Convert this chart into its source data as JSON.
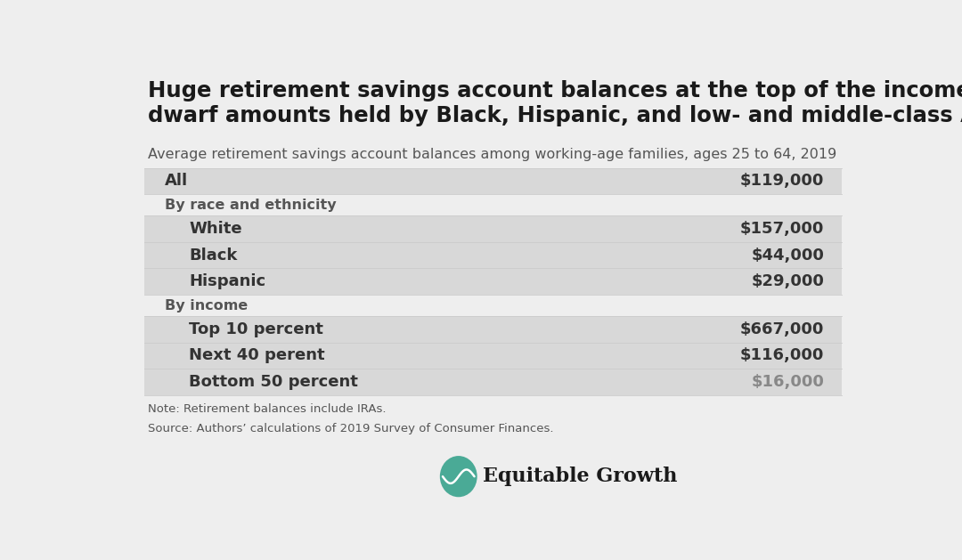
{
  "title_line1": "Huge retirement savings account balances at the top of the income spectrum",
  "title_line2": "dwarf amounts held by Black, Hispanic, and low- and middle-class Americans",
  "subtitle": "Average retirement savings account balances among working-age families, ages 25 to 64, 2019",
  "rows": [
    {
      "label": "All",
      "value": "$119,000",
      "indent": 0,
      "shaded": true,
      "header": false,
      "value_muted": false
    },
    {
      "label": "By race and ethnicity",
      "value": "",
      "indent": 0,
      "shaded": false,
      "header": true,
      "value_muted": false
    },
    {
      "label": "White",
      "value": "$157,000",
      "indent": 1,
      "shaded": true,
      "header": false,
      "value_muted": false
    },
    {
      "label": "Black",
      "value": "$44,000",
      "indent": 1,
      "shaded": true,
      "header": false,
      "value_muted": false
    },
    {
      "label": "Hispanic",
      "value": "$29,000",
      "indent": 1,
      "shaded": true,
      "header": false,
      "value_muted": false
    },
    {
      "label": "By income",
      "value": "",
      "indent": 0,
      "shaded": false,
      "header": true,
      "value_muted": false
    },
    {
      "label": "Top 10 percent",
      "value": "$667,000",
      "indent": 1,
      "shaded": true,
      "header": false,
      "value_muted": false
    },
    {
      "label": "Next 40 perent",
      "value": "$116,000",
      "indent": 1,
      "shaded": true,
      "header": false,
      "value_muted": false
    },
    {
      "label": "Bottom 50 percent",
      "value": "$16,000",
      "indent": 1,
      "shaded": true,
      "header": false,
      "value_muted": true
    }
  ],
  "note": "Note: Retirement balances include IRAs.",
  "source": "Source: Authors’ calculations of 2019 Survey of Consumer Finances.",
  "bg_color": "#eeeeee",
  "shaded_color": "#d8d8d8",
  "unshaded_color": "#eeeeee",
  "title_color": "#1a1a1a",
  "label_color": "#333333",
  "header_label_color": "#555555",
  "value_color": "#333333",
  "value_muted_color": "#888888",
  "note_color": "#555555",
  "brand_color": "#4aaa96",
  "brand_name": "Equitable Growth",
  "title_fontsize": 17.5,
  "subtitle_fontsize": 11.5,
  "label_fontsize": 13.0,
  "header_label_fontsize": 11.5,
  "value_fontsize": 13.0,
  "note_fontsize": 9.5,
  "sep_color": "#cccccc"
}
